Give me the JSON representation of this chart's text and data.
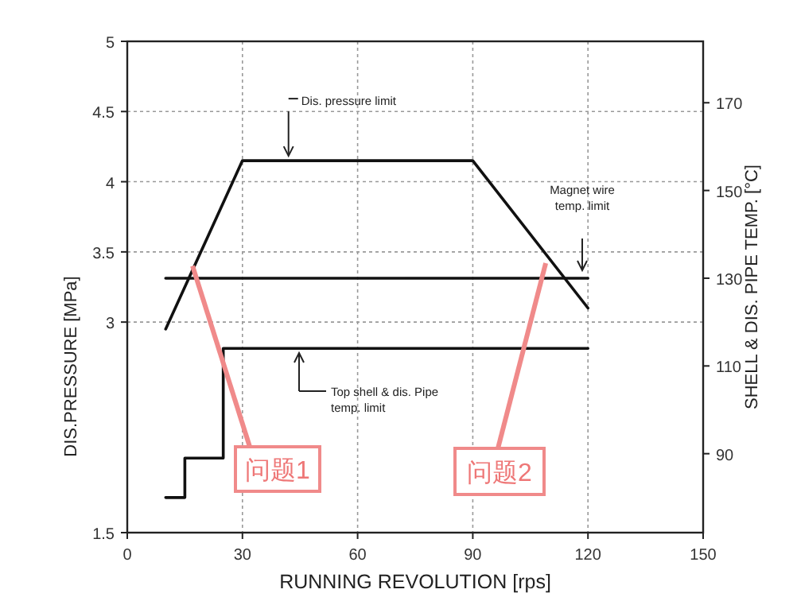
{
  "chart_data": {
    "type": "line",
    "xlabel": "RUNNING REVOLUTION  [rps]",
    "ylabel": "DIS.PRESSURE [MPa]",
    "y2label": "SHELL & DIS. PIPE TEMP. [°C]",
    "xlim": [
      0,
      150
    ],
    "xticks": [
      0,
      30,
      60,
      90,
      120,
      150
    ],
    "ylim": [
      1.5,
      5.0
    ],
    "yticks": [
      1.5,
      3.0,
      3.5,
      4.0,
      4.5,
      5.0
    ],
    "y2lim": [
      72,
      184
    ],
    "y2ticks": [
      90,
      110,
      130,
      150,
      170
    ],
    "grid": true,
    "marker": "none",
    "line_style": "solid",
    "series": [
      {
        "color": "#111111",
        "x": [
          10,
          30,
          90,
          120
        ],
        "values": [
          2.95,
          4.15,
          4.15,
          3.1
        ]
      },
      {
        "color": "#111111",
        "axis": "y2",
        "x": [
          10,
          120
        ],
        "values": [
          130,
          130
        ]
      },
      {
        "color": "#111111",
        "axis": "y2",
        "x": [
          10,
          15,
          15,
          25,
          25,
          120
        ],
        "values": [
          80,
          80,
          89,
          89,
          114,
          114
        ]
      }
    ],
    "annotations": [
      {
        "text": "Dis. pressure limit",
        "x": 42,
        "y": 4.15
      },
      "Magnet wire temp. limit",
      "Top shell & dis. Pipe temp. limit",
      {
        "text": "问题1",
        "x": 17,
        "y": 3.4
      },
      {
        "text": "问题2",
        "x": 109,
        "y": 3.42
      }
    ]
  }
}
